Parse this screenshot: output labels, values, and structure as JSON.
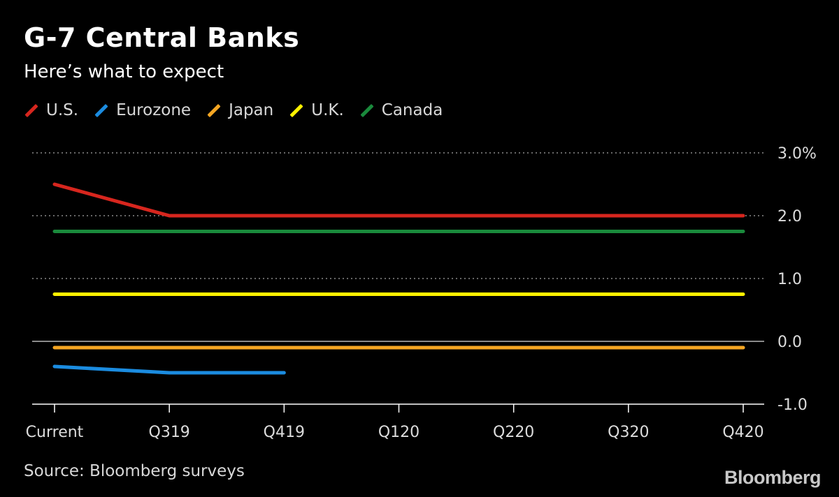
{
  "header": {
    "title": "G-7 Central Banks",
    "subtitle": "Here’s what to expect"
  },
  "footer": {
    "source": "Source: Bloomberg surveys",
    "logo": "Bloomberg"
  },
  "chart_data": {
    "type": "line",
    "title": "G-7 Central Banks",
    "subtitle": "Here’s what to expect",
    "xlabel": "",
    "ylabel": "",
    "categories": [
      "Current",
      "Q319",
      "Q419",
      "Q120",
      "Q220",
      "Q320",
      "Q420"
    ],
    "y_ticks": [
      3.0,
      2.0,
      1.0,
      0.0,
      -1.0
    ],
    "y_tick_labels": [
      "3.0%",
      "2.0",
      "1.0",
      "0.0",
      "-1.0"
    ],
    "ylim": [
      -1.0,
      3.0
    ],
    "grid": true,
    "legend_position": "top-left",
    "series": [
      {
        "name": "U.S.",
        "color": "#d7261e",
        "values": [
          2.5,
          2.0,
          2.0,
          2.0,
          2.0,
          2.0,
          2.0
        ]
      },
      {
        "name": "Eurozone",
        "color": "#1b8ce0",
        "values": [
          -0.4,
          -0.5,
          -0.5,
          null,
          null,
          null,
          null
        ]
      },
      {
        "name": "Japan",
        "color": "#f5a623",
        "values": [
          -0.1,
          -0.1,
          -0.1,
          -0.1,
          -0.1,
          -0.1,
          -0.1
        ]
      },
      {
        "name": "U.K.",
        "color": "#fff200",
        "values": [
          0.75,
          0.75,
          0.75,
          0.75,
          0.75,
          0.75,
          0.75
        ]
      },
      {
        "name": "Canada",
        "color": "#1a8a3c",
        "values": [
          1.75,
          1.75,
          1.75,
          1.75,
          1.75,
          1.75,
          1.75
        ]
      }
    ]
  }
}
